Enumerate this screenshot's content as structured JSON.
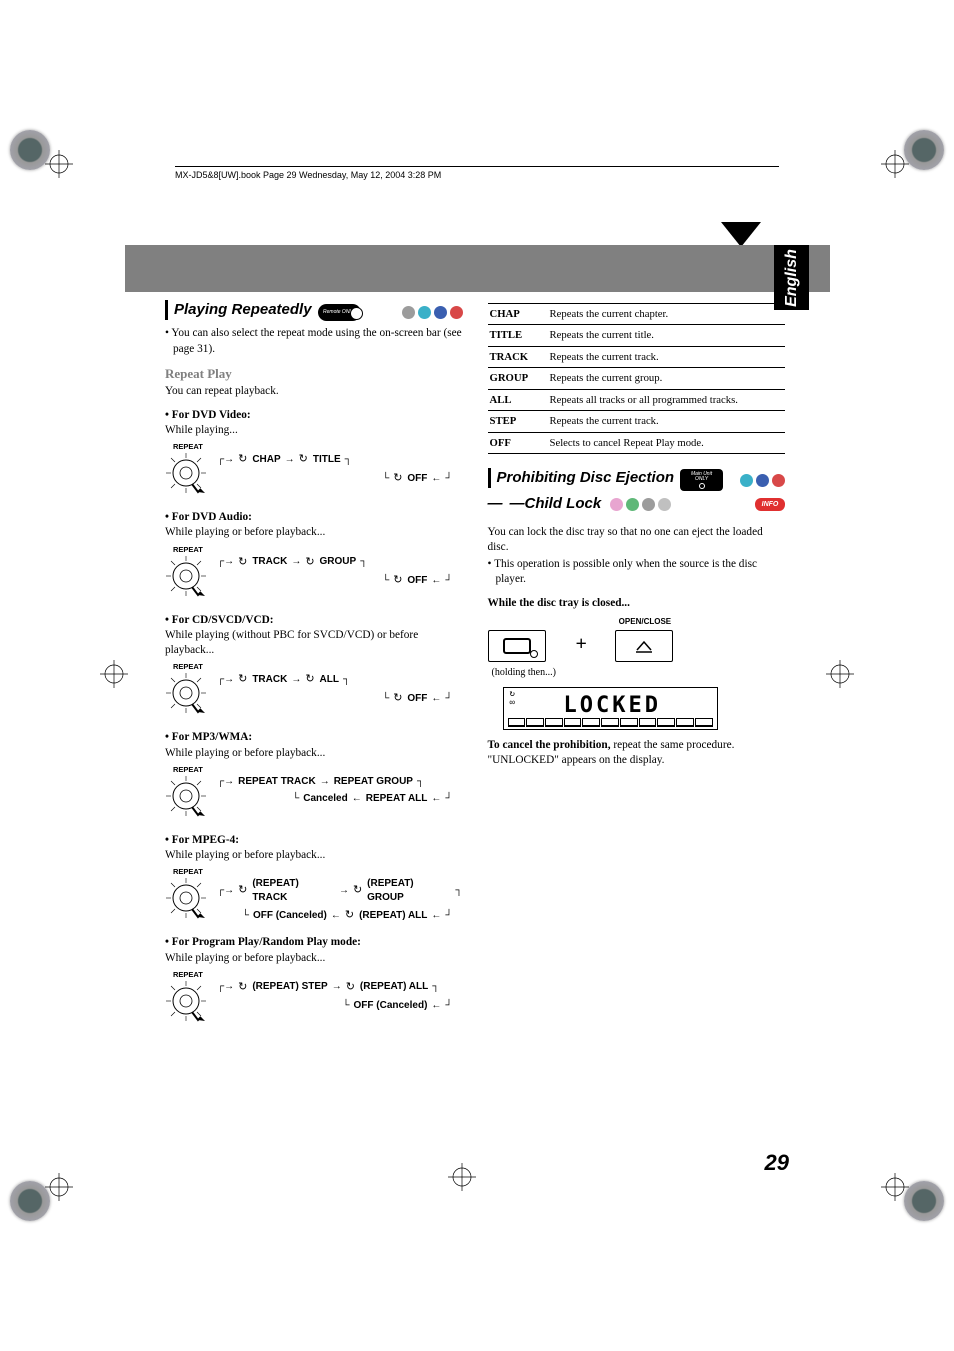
{
  "doc": {
    "header_line": "MX-JD5&8[UW].book  Page 29  Wednesday, May 12, 2004  3:28 PM",
    "page_number": "29",
    "side_tab": "English"
  },
  "colors": {
    "dot_gray": "#9c9c9c",
    "dot_cyan": "#3ab0c8",
    "dot_blue": "#3a5fb0",
    "dot_red": "#d84848",
    "dot_pink": "#e8a5d0",
    "dot_green": "#5fb878",
    "dot_lgray": "#c0c0c0",
    "info_red": "#e03030",
    "banner_gray": "#808080"
  },
  "left": {
    "h1": "Playing Repeatedly",
    "badge_remote": "Remote ONLY",
    "dots_h1": [
      "#9c9c9c",
      "#3ab0c8",
      "#3a5fb0",
      "#d84848"
    ],
    "note1": "You can also select the repeat mode using the on-screen bar (see page 31).",
    "h2": "Repeat Play",
    "desc": "You can repeat playback.",
    "groups": [
      {
        "title": "For DVD Video:",
        "sub": "While playing...",
        "cycle_top": [
          "CHAP",
          "TITLE"
        ],
        "cycle_bot": [
          "OFF"
        ],
        "useLoop": true
      },
      {
        "title": "For DVD Audio:",
        "sub": "While playing or before playback...",
        "cycle_top": [
          "TRACK",
          "GROUP"
        ],
        "cycle_bot": [
          "OFF"
        ],
        "useLoop": true
      },
      {
        "title": "For CD/SVCD/VCD:",
        "sub": "While playing (without PBC for SVCD/VCD) or before playback...",
        "cycle_top": [
          "TRACK",
          "ALL"
        ],
        "cycle_bot": [
          "OFF"
        ],
        "useLoop": true
      },
      {
        "title": "For MP3/WMA:",
        "sub": "While playing or before playback...",
        "cycle_top": [
          "REPEAT TRACK",
          "REPEAT GROUP"
        ],
        "cycle_bot": [
          "Canceled",
          "REPEAT ALL"
        ],
        "useLoop": false
      },
      {
        "title": "For MPEG-4:",
        "sub": "While playing or before playback...",
        "cycle_top": [
          "(REPEAT) TRACK",
          "(REPEAT) GROUP"
        ],
        "cycle_bot": [
          "OFF (Canceled)",
          "(REPEAT) ALL"
        ],
        "useLoop": true
      },
      {
        "title": "For Program Play/Random Play mode:",
        "sub": "While playing or before playback...",
        "cycle_top": [
          "(REPEAT) STEP",
          "(REPEAT) ALL"
        ],
        "cycle_bot": [
          "OFF (Canceled)"
        ],
        "useLoop": true
      }
    ],
    "repeat_label": "REPEAT"
  },
  "right": {
    "table": [
      [
        "CHAP",
        "Repeats the current chapter."
      ],
      [
        "TITLE",
        "Repeats the current title."
      ],
      [
        "TRACK",
        "Repeats the current track."
      ],
      [
        "GROUP",
        "Repeats the current group."
      ],
      [
        "ALL",
        "Repeats all tracks or all programmed tracks."
      ],
      [
        "STEP",
        "Repeats the current track."
      ],
      [
        "OFF",
        "Selects to cancel Repeat Play mode."
      ]
    ],
    "h1a": "Prohibiting Disc Ejection",
    "h1b": "—Child Lock",
    "badge_main_l1": "Main Unit",
    "badge_main_l2": "ONLY",
    "dots_a": [
      "#3ab0c8",
      "#3a5fb0",
      "#d84848"
    ],
    "dots_b": [
      "#e8a5d0",
      "#5fb878",
      "#9c9c9c",
      "#c0c0c0"
    ],
    "info_label": "INFO",
    "p1": "You can lock the disc tray so that no one can eject the loaded disc.",
    "p2": "This operation is possible only when the source is the disc player.",
    "while": "While the disc tray is closed...",
    "oc_label": "OPEN/CLOSE",
    "holding": "(holding then...)",
    "lcd_text": "LOCKED",
    "cancel_b": "To cancel the prohibition,",
    "cancel_r": " repeat the same procedure. \"UNLOCKED\" appears on the display."
  }
}
